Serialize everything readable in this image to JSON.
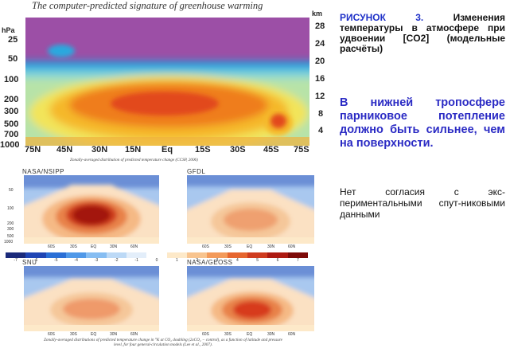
{
  "top_chart": {
    "title": "The computer-predicted signature of greenhouse warming",
    "left_unit": "hPa",
    "right_unit": "km",
    "pressure_ticks": [
      "25",
      "50",
      "100",
      "200",
      "300",
      "500",
      "700",
      "1000"
    ],
    "height_ticks": [
      "28",
      "24",
      "20",
      "16",
      "12",
      "8",
      "4"
    ],
    "lat_ticks": [
      "75N",
      "45N",
      "30N",
      "15N",
      "Eq",
      "15S",
      "30S",
      "45S",
      "75S"
    ],
    "caption": "Zonally-averaged distribution of predicted temperature change (CCSP, 2006)"
  },
  "panels": [
    {
      "label": "NASA/NSIPP"
    },
    {
      "label": "GFDL"
    },
    {
      "label": "SNU"
    },
    {
      "label": "NASA/GEOSS"
    }
  ],
  "panel_pressure_ticks": [
    "50",
    "100",
    "200",
    "300",
    "500",
    "1000"
  ],
  "panel_lat_ticks": [
    "60S",
    "30S",
    "EQ",
    "30N",
    "60N"
  ],
  "colorbar": {
    "labels": [
      "-7",
      "-6",
      "-5",
      "-4",
      "-3",
      "-2",
      "-1",
      "0",
      "1",
      "2",
      "3",
      "4",
      "5",
      "6",
      "7"
    ],
    "colors": [
      "#1b2a7a",
      "#1f45b4",
      "#2a6fd6",
      "#4f98e8",
      "#86bdf2",
      "#bcd9f6",
      "#e3eefa",
      "#ffffff",
      "#fde9c9",
      "#f8c48f",
      "#f39a5a",
      "#e6662f",
      "#cf3c1f",
      "#ad1a12",
      "#7e0b08"
    ]
  },
  "bottom_caption": "Zonally-averaged distributions of predicted temperature change in °K at CO₂ doubling (2xCO₂ − control), as a function of latitude and pressure level, for four general-circulation models (Lee et al., 2007).",
  "text": {
    "figure_label": "РИСУНОК 3.",
    "figure_desc": "Изменения температуры в атмосфере при удвоении [CO2] (модельные расчёты)",
    "claim": "В нижней тропосфере парниковое потепление должно быть сильнее, чем на поверхности.",
    "note": "Нет согласия с экс-периментальными спут-никовыми данными"
  }
}
